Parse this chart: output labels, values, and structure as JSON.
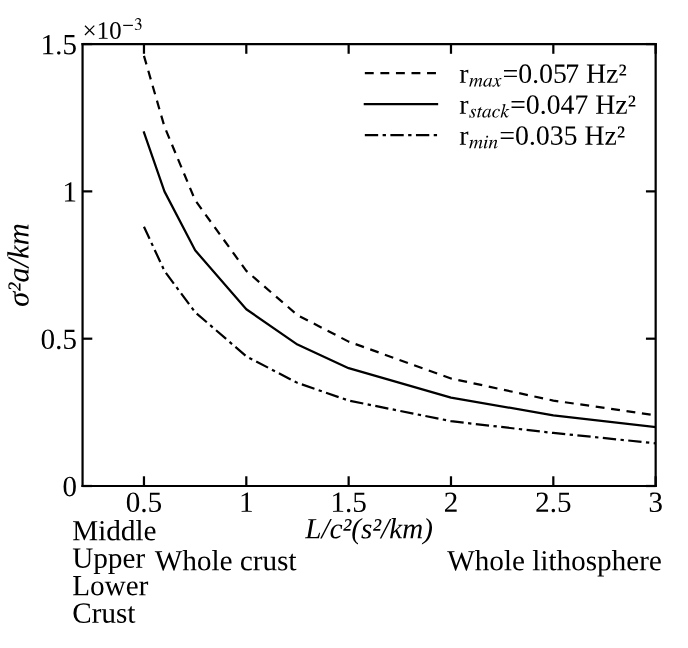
{
  "chart_data": {
    "type": "line",
    "xlabel": "L/c²(s²/km)",
    "ylabel": "σ²a/km",
    "x": [
      0.5,
      0.6,
      0.75,
      1,
      1.25,
      1.5,
      2,
      2.5,
      3
    ],
    "series": [
      {
        "name": "r$_{max}$=0.057 Hz²",
        "color": "#000000",
        "line_style": "dashed",
        "values": [
          1.46,
          1.22,
          0.97,
          0.73,
          0.58,
          0.49,
          0.365,
          0.29,
          0.24
        ]
      },
      {
        "name": "r$_{stack}$=0.047 Hz²",
        "color": "#000000",
        "line_style": "solid",
        "values": [
          1.2,
          1.0,
          0.8,
          0.6,
          0.48,
          0.4,
          0.3,
          0.24,
          0.2
        ]
      },
      {
        "name": "r$_{min}$=0.035 Hz²",
        "color": "#000000",
        "line_style": "dashdot",
        "values": [
          0.88,
          0.73,
          0.59,
          0.44,
          0.35,
          0.29,
          0.22,
          0.18,
          0.145
        ]
      }
    ],
    "xlim": [
      0.2,
      3
    ],
    "ylim": [
      0,
      1.5
    ],
    "xticks": [
      0.5,
      1,
      1.5,
      2,
      2.5,
      3
    ],
    "yticks": [
      0,
      0.5,
      1,
      1.5
    ],
    "annotations": [
      "×10$^{−3}$",
      "Middle\nUpper\nLower\nCrust",
      "Whole crust",
      "Whole lithosphere"
    ],
    "legend": "top right",
    "grid": false
  }
}
